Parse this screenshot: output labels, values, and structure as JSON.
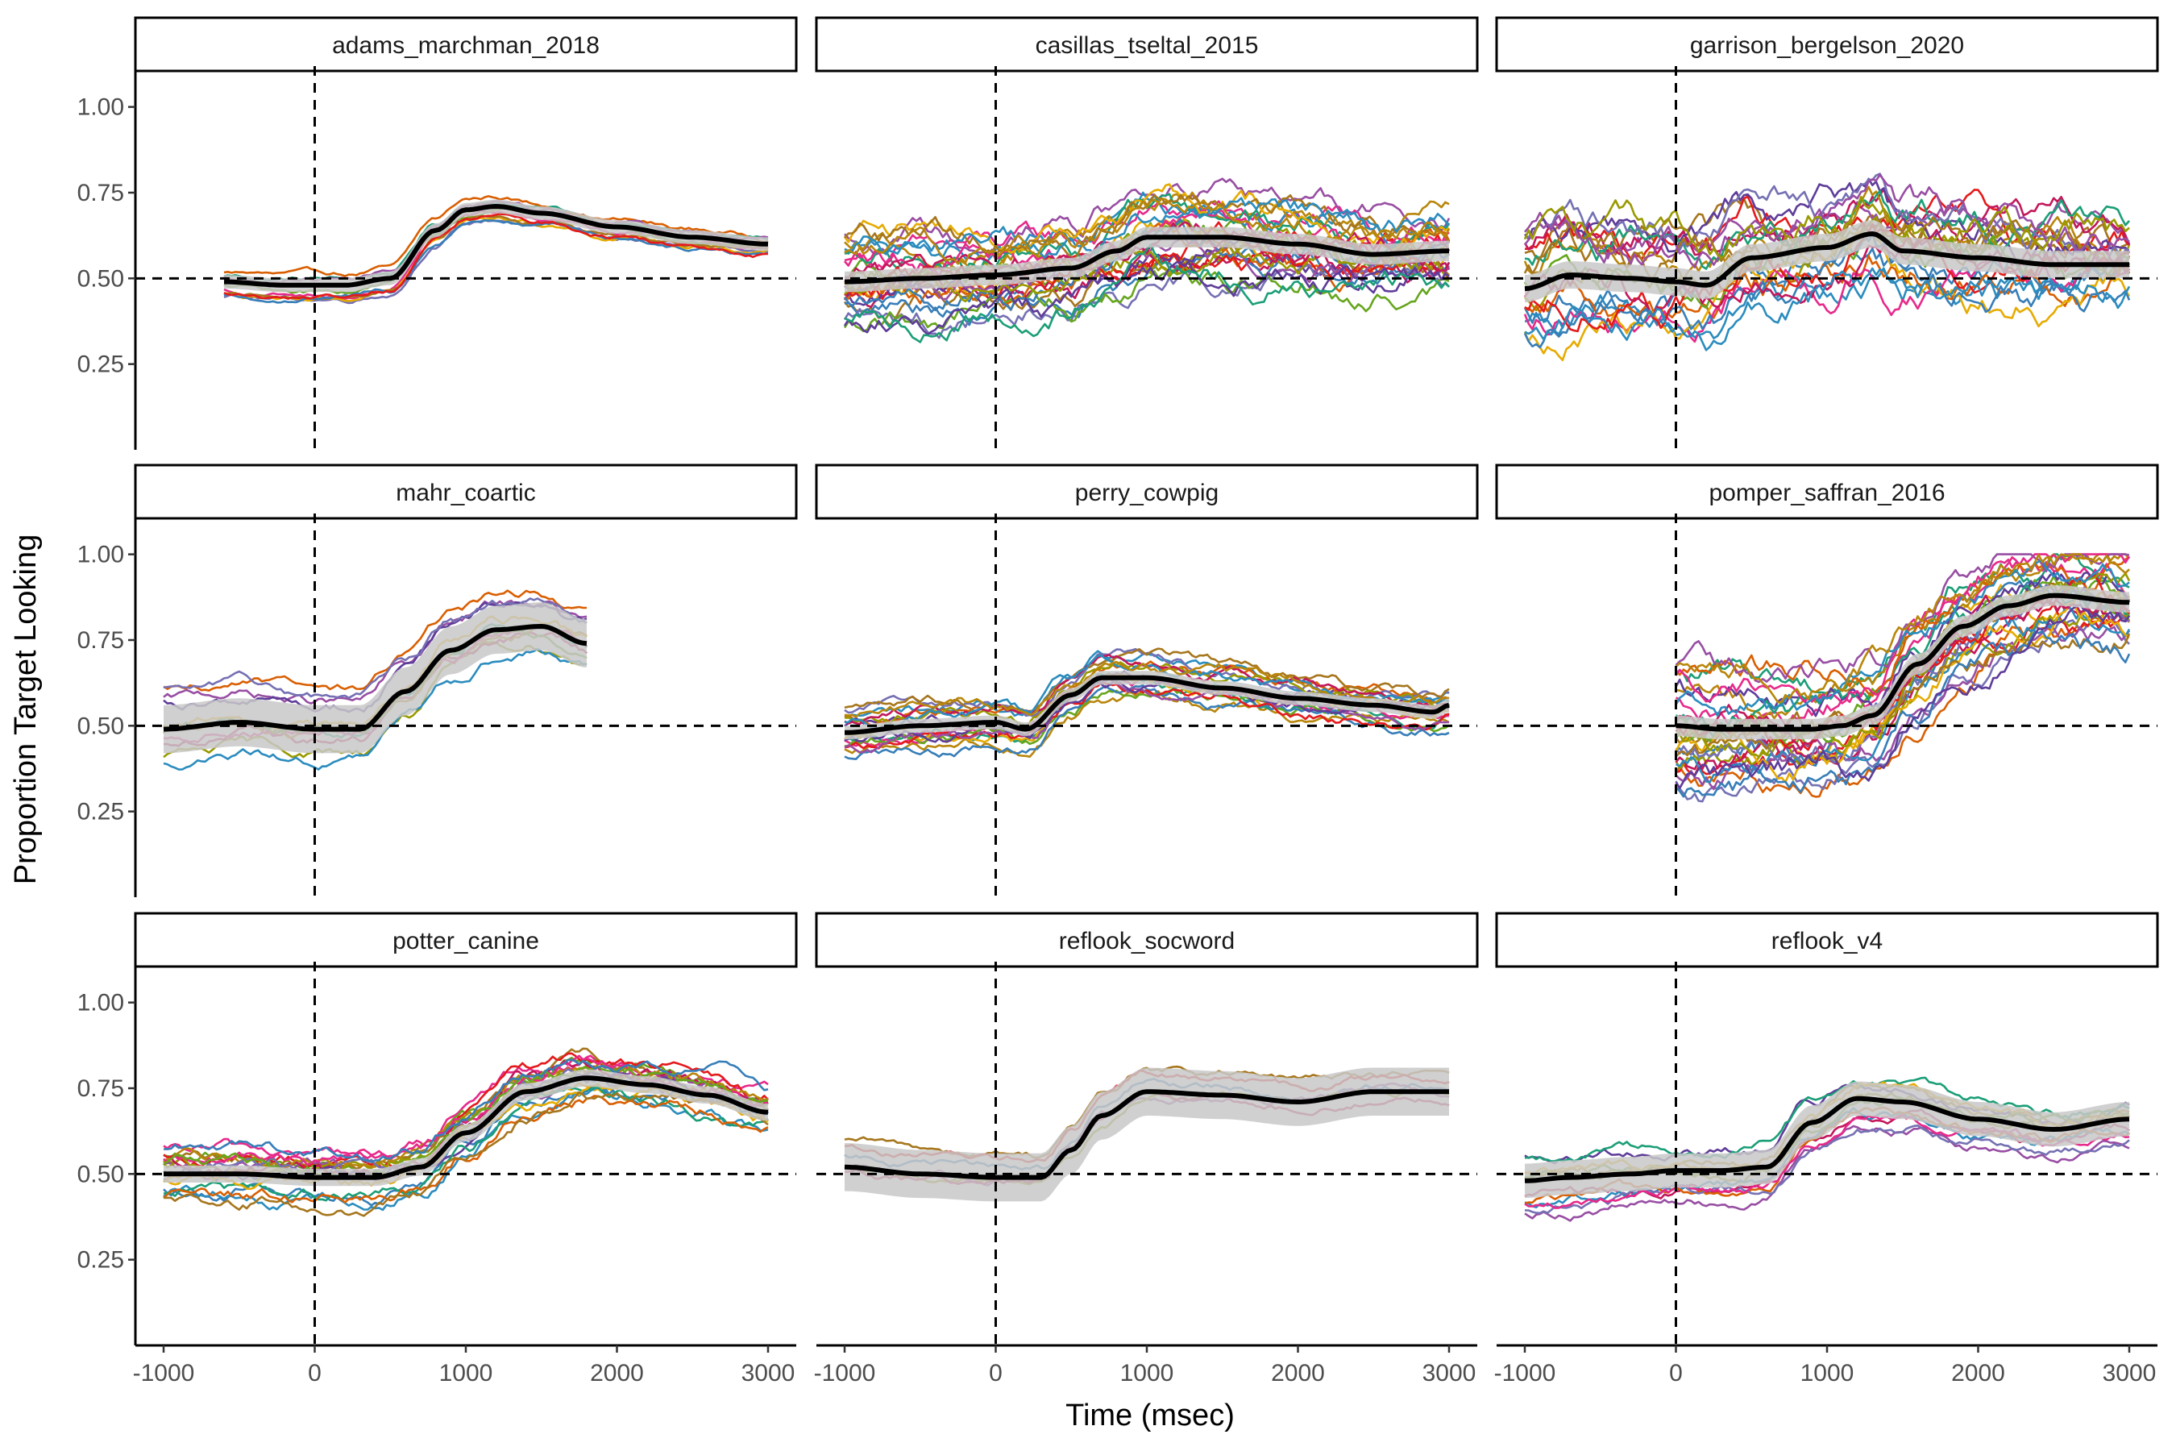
{
  "chart_data": {
    "type": "line",
    "facet_layout": {
      "rows": 3,
      "cols": 3
    },
    "xlabel": "Time (msec)",
    "ylabel": "Proportion Target Looking",
    "xlim": [
      -1000,
      3000
    ],
    "ylim": [
      0,
      1
    ],
    "x_ticks": [
      -1000,
      0,
      1000,
      2000,
      3000
    ],
    "x_tick_labels": [
      "-1000",
      "0",
      "1000",
      "2000",
      "3000"
    ],
    "y_ticks": [
      0.25,
      0.5,
      0.75,
      1.0
    ],
    "y_tick_labels": [
      "0.25",
      "0.50",
      "0.75",
      "1.00"
    ],
    "reference_lines": {
      "vertical_x": 0,
      "horizontal_y": 0.5,
      "style": "dashed"
    },
    "grid": false,
    "legend": "none",
    "colors": {
      "mean_line": "#000000",
      "ribbon": "#c8c8c8",
      "reference": "#000000",
      "individual_palette": [
        "#1b9e77",
        "#d95f02",
        "#7570b3",
        "#e7298a",
        "#66a61e",
        "#e6ab02",
        "#a6761d",
        "#377eb8",
        "#e41a1c",
        "#984ea3",
        "#999900",
        "#c2185b",
        "#2b8cbe",
        "#b8860b",
        "#5e3c99"
      ]
    },
    "panels": [
      {
        "title": "adams_marchman_2018",
        "x_range": [
          -600,
          3000
        ],
        "n_lines": 10,
        "noise": 0.01,
        "spread": 0.045,
        "mean_curve": {
          "x": [
            -600,
            -200,
            200,
            500,
            800,
            1000,
            1200,
            1500,
            2000,
            2500,
            3000
          ],
          "y": [
            0.49,
            0.48,
            0.48,
            0.5,
            0.64,
            0.7,
            0.71,
            0.69,
            0.65,
            0.62,
            0.6
          ]
        },
        "ribbon_halfwidth": 0.02
      },
      {
        "title": "casillas_tseltal_2015",
        "x_range": [
          -1000,
          3000
        ],
        "n_lines": 28,
        "noise": 0.045,
        "spread": 0.16,
        "mean_curve": {
          "x": [
            -1000,
            -500,
            0,
            500,
            800,
            1000,
            1500,
            2000,
            2500,
            3000
          ],
          "y": [
            0.49,
            0.5,
            0.51,
            0.53,
            0.58,
            0.62,
            0.62,
            0.6,
            0.57,
            0.58
          ]
        },
        "ribbon_halfwidth": 0.03
      },
      {
        "title": "garrison_bergelson_2020",
        "x_range": [
          -1000,
          3000
        ],
        "n_lines": 22,
        "noise": 0.06,
        "spread": 0.15,
        "mean_curve": {
          "x": [
            -1000,
            -700,
            -300,
            0,
            200,
            500,
            1000,
            1300,
            1500,
            2000,
            2500,
            3000
          ],
          "y": [
            0.47,
            0.51,
            0.5,
            0.49,
            0.48,
            0.56,
            0.59,
            0.63,
            0.58,
            0.56,
            0.54,
            0.54
          ]
        },
        "ribbon_halfwidth": 0.04
      },
      {
        "title": "mahr_coartic",
        "x_range": [
          -1000,
          1800
        ],
        "n_lines": 12,
        "noise": 0.02,
        "spread": 0.14,
        "mean_curve": {
          "x": [
            -1000,
            -500,
            0,
            300,
            600,
            900,
            1200,
            1500,
            1800
          ],
          "y": [
            0.49,
            0.51,
            0.49,
            0.49,
            0.6,
            0.72,
            0.78,
            0.79,
            0.74
          ]
        },
        "ribbon_halfwidth": 0.07
      },
      {
        "title": "perry_cowpig",
        "x_range": [
          -1000,
          3000
        ],
        "n_lines": 18,
        "noise": 0.022,
        "spread": 0.07,
        "mean_curve": {
          "x": [
            -1000,
            -500,
            0,
            200,
            500,
            700,
            1000,
            1500,
            2000,
            2500,
            2900,
            3000
          ],
          "y": [
            0.48,
            0.5,
            0.51,
            0.49,
            0.59,
            0.64,
            0.64,
            0.61,
            0.58,
            0.56,
            0.54,
            0.56
          ]
        },
        "ribbon_halfwidth": 0.02
      },
      {
        "title": "pomper_saffran_2016",
        "x_range": [
          0,
          3000
        ],
        "n_lines": 30,
        "noise": 0.05,
        "spread": 0.2,
        "mean_curve": {
          "x": [
            0,
            300,
            600,
            900,
            1100,
            1300,
            1600,
            1900,
            2200,
            2500,
            3000
          ],
          "y": [
            0.5,
            0.49,
            0.49,
            0.49,
            0.5,
            0.53,
            0.68,
            0.79,
            0.85,
            0.88,
            0.86
          ]
        },
        "ribbon_halfwidth": 0.03
      },
      {
        "title": "potter_canine",
        "x_range": [
          -1000,
          3000
        ],
        "n_lines": 20,
        "noise": 0.025,
        "spread": 0.08,
        "mean_curve": {
          "x": [
            -1000,
            -500,
            0,
            400,
            700,
            1000,
            1400,
            1800,
            2200,
            2600,
            3000
          ],
          "y": [
            0.5,
            0.5,
            0.49,
            0.49,
            0.52,
            0.62,
            0.74,
            0.78,
            0.76,
            0.73,
            0.68
          ]
        },
        "ribbon_halfwidth": 0.025
      },
      {
        "title": "reflook_socword",
        "x_range": [
          -1000,
          3000
        ],
        "n_lines": 6,
        "noise": 0.015,
        "spread": 0.08,
        "mean_curve": {
          "x": [
            -1000,
            -500,
            0,
            300,
            500,
            700,
            1000,
            1500,
            2000,
            2500,
            3000
          ],
          "y": [
            0.52,
            0.5,
            0.49,
            0.49,
            0.57,
            0.67,
            0.74,
            0.73,
            0.71,
            0.74,
            0.74
          ]
        },
        "ribbon_halfwidth": 0.07
      },
      {
        "title": "reflook_v4",
        "x_range": [
          -1000,
          3000
        ],
        "n_lines": 12,
        "noise": 0.02,
        "spread": 0.1,
        "mean_curve": {
          "x": [
            -1000,
            -700,
            -300,
            0,
            300,
            600,
            900,
            1200,
            1500,
            2000,
            2500,
            3000
          ],
          "y": [
            0.48,
            0.49,
            0.5,
            0.51,
            0.51,
            0.52,
            0.65,
            0.72,
            0.71,
            0.66,
            0.63,
            0.66
          ]
        },
        "ribbon_halfwidth": 0.05
      }
    ]
  }
}
